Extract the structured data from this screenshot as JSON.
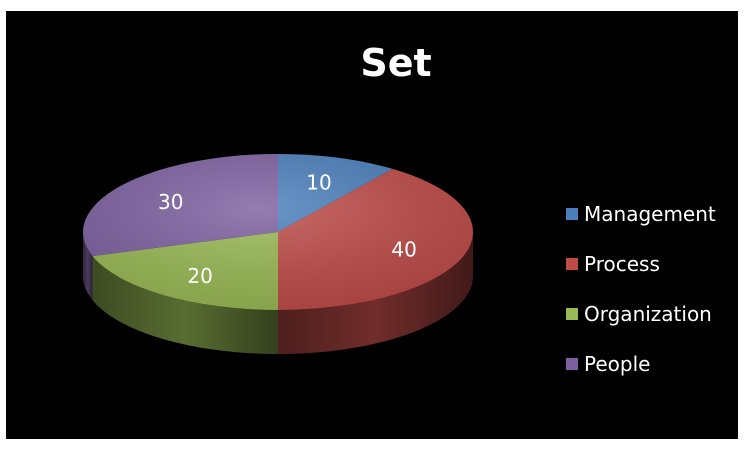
{
  "chart_data": {
    "type": "pie",
    "title": "Set",
    "categories": [
      "Management",
      "Process",
      "Organization",
      "People"
    ],
    "values": [
      10,
      40,
      20,
      30
    ],
    "data_labels": [
      "10",
      "40",
      "20",
      "30"
    ],
    "colors": [
      "#4a7ebb",
      "#be4b48",
      "#98b954",
      "#7d60a0"
    ],
    "legend": "right",
    "style": "3d-pie"
  }
}
